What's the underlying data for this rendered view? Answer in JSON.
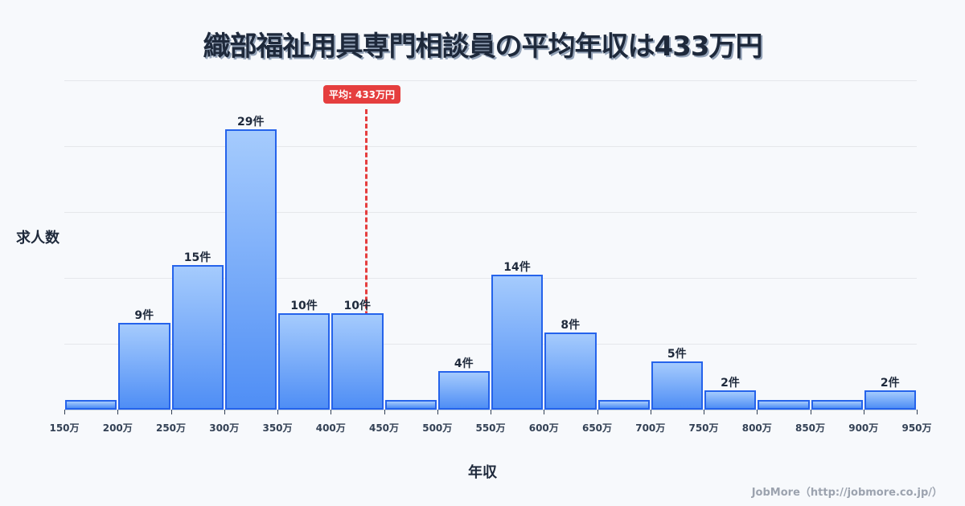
{
  "title": "織部福祉用具専門相談員の平均年収は433万円",
  "credit": "JobMore（http://jobmore.co.jp/）",
  "mean_label": "平均: 433万円",
  "chart_data": {
    "type": "bar",
    "title": "織部福祉用具専門相談員の平均年収は433万円",
    "xlabel": "年収",
    "ylabel": "求人数",
    "categories": [
      "150-200万",
      "200-250万",
      "250-300万",
      "300-350万",
      "350-400万",
      "400-450万",
      "450-500万",
      "500-550万",
      "550-600万",
      "600-650万",
      "650-700万",
      "700-750万",
      "750-800万",
      "800-850万",
      "850-900万",
      "900-950万"
    ],
    "values": [
      1,
      9,
      15,
      29,
      10,
      10,
      1,
      4,
      14,
      8,
      1,
      5,
      2,
      1,
      1,
      2
    ],
    "labels": [
      "",
      "9件",
      "15件",
      "29件",
      "10件",
      "10件",
      "",
      "4件",
      "14件",
      "8件",
      "",
      "5件",
      "2件",
      "",
      "",
      "2件"
    ],
    "x_ticks": [
      "150万",
      "200万",
      "250万",
      "300万",
      "350万",
      "400万",
      "450万",
      "500万",
      "550万",
      "600万",
      "650万",
      "700万",
      "750万",
      "800万",
      "850万",
      "900万",
      "950万"
    ],
    "mean": 433,
    "mean_label": "平均: 433万円",
    "ylim": [
      0,
      34
    ],
    "grid": true,
    "legend": "none"
  }
}
